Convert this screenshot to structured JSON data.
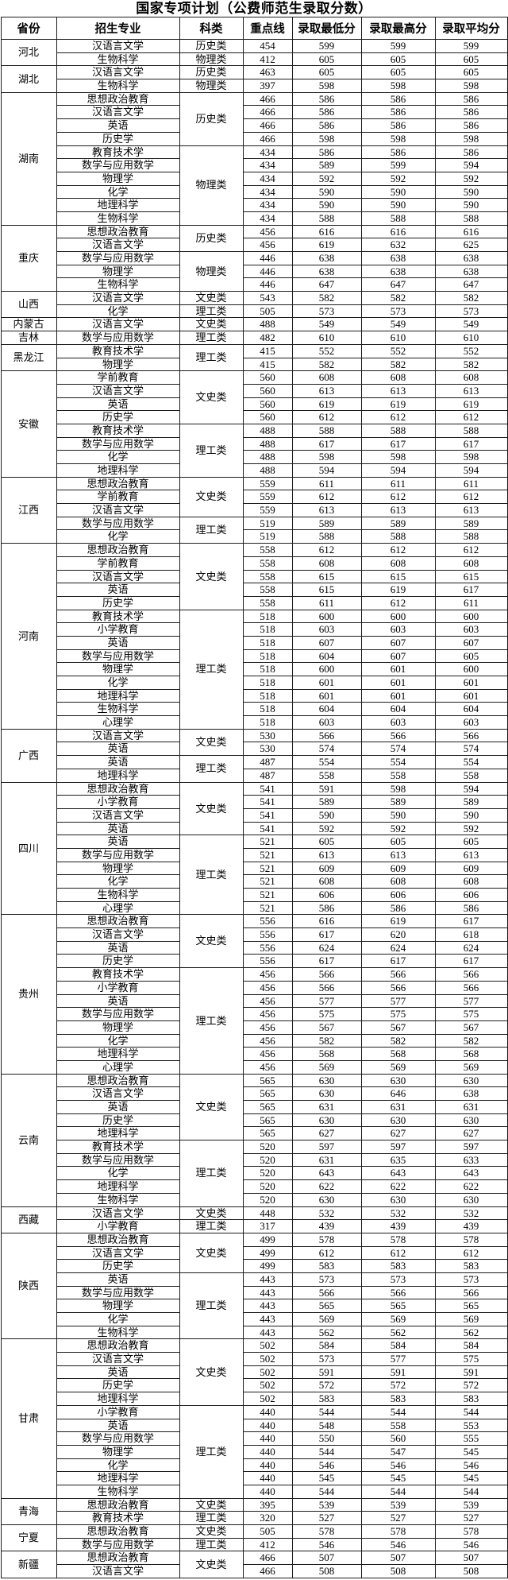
{
  "title": "国家专项计划（公费师范生录取分数）",
  "columns": [
    "省份",
    "招生专业",
    "科类",
    "重点线",
    "录取最低分",
    "录取最高分",
    "录取平均分"
  ],
  "colors": {
    "border": "#1c1c1c",
    "text": "#000000",
    "background": "#ffffff"
  },
  "provinces": [
    {
      "name": "河北",
      "groups": [
        {
          "category": "历史类",
          "rows": [
            [
              "汉语言文学",
              454,
              599,
              599,
              599
            ]
          ]
        },
        {
          "category": "物理类",
          "rows": [
            [
              "生物科学",
              412,
              605,
              605,
              605
            ]
          ]
        }
      ]
    },
    {
      "name": "湖北",
      "groups": [
        {
          "category": "历史类",
          "rows": [
            [
              "汉语言文学",
              463,
              605,
              605,
              605
            ]
          ]
        },
        {
          "category": "物理类",
          "rows": [
            [
              "生物科学",
              397,
              598,
              598,
              598
            ]
          ]
        }
      ]
    },
    {
      "name": "湖南",
      "groups": [
        {
          "category": "历史类",
          "rows": [
            [
              "思想政治教育",
              466,
              586,
              586,
              586
            ],
            [
              "汉语言文学",
              466,
              586,
              586,
              586
            ],
            [
              "英语",
              466,
              586,
              586,
              586
            ],
            [
              "历史学",
              466,
              598,
              598,
              598
            ]
          ]
        },
        {
          "category": "物理类",
          "rows": [
            [
              "教育技术学",
              434,
              586,
              586,
              586
            ],
            [
              "数学与应用数学",
              434,
              589,
              599,
              594
            ],
            [
              "物理学",
              434,
              592,
              592,
              592
            ],
            [
              "化学",
              434,
              590,
              590,
              590
            ],
            [
              "地理科学",
              434,
              590,
              590,
              590
            ],
            [
              "生物科学",
              434,
              588,
              588,
              588
            ]
          ]
        }
      ]
    },
    {
      "name": "重庆",
      "groups": [
        {
          "category": "历史类",
          "rows": [
            [
              "思想政治教育",
              456,
              616,
              616,
              616
            ],
            [
              "汉语言文学",
              456,
              619,
              632,
              625
            ]
          ]
        },
        {
          "category": "物理类",
          "rows": [
            [
              "数学与应用数学",
              446,
              638,
              638,
              638
            ],
            [
              "物理学",
              446,
              638,
              638,
              638
            ],
            [
              "生物科学",
              446,
              647,
              647,
              647
            ]
          ]
        }
      ]
    },
    {
      "name": "山西",
      "groups": [
        {
          "category": "文史类",
          "rows": [
            [
              "汉语言文学",
              543,
              582,
              582,
              582
            ]
          ]
        },
        {
          "category": "理工类",
          "rows": [
            [
              "化学",
              505,
              573,
              573,
              573
            ]
          ]
        }
      ]
    },
    {
      "name": "内蒙古",
      "groups": [
        {
          "category": "文史类",
          "rows": [
            [
              "汉语言文学",
              488,
              549,
              549,
              549
            ]
          ]
        }
      ]
    },
    {
      "name": "吉林",
      "groups": [
        {
          "category": "理工类",
          "rows": [
            [
              "数学与应用数学",
              482,
              610,
              610,
              610
            ]
          ]
        }
      ]
    },
    {
      "name": "黑龙江",
      "groups": [
        {
          "category": "理工类",
          "rows": [
            [
              "教育技术学",
              415,
              552,
              552,
              552
            ],
            [
              "物理学",
              415,
              582,
              582,
              582
            ]
          ]
        }
      ]
    },
    {
      "name": "安徽",
      "groups": [
        {
          "category": "文史类",
          "rows": [
            [
              "学前教育",
              560,
              608,
              608,
              608
            ],
            [
              "汉语言文学",
              560,
              613,
              613,
              613
            ],
            [
              "英语",
              560,
              619,
              619,
              619
            ],
            [
              "历史学",
              560,
              612,
              612,
              612
            ]
          ]
        },
        {
          "category": "理工类",
          "rows": [
            [
              "教育技术学",
              488,
              588,
              588,
              588
            ],
            [
              "数学与应用数学",
              488,
              617,
              617,
              617
            ],
            [
              "化学",
              488,
              598,
              598,
              598
            ],
            [
              "地理科学",
              488,
              594,
              594,
              594
            ]
          ]
        }
      ]
    },
    {
      "name": "江西",
      "groups": [
        {
          "category": "文史类",
          "rows": [
            [
              "思想政治教育",
              559,
              611,
              611,
              611
            ],
            [
              "学前教育",
              559,
              612,
              612,
              612
            ],
            [
              "汉语言文学",
              559,
              613,
              613,
              613
            ]
          ]
        },
        {
          "category": "理工类",
          "rows": [
            [
              "数学与应用数学",
              519,
              589,
              589,
              589
            ],
            [
              "化学",
              519,
              588,
              588,
              588
            ]
          ]
        }
      ]
    },
    {
      "name": "河南",
      "groups": [
        {
          "category": "文史类",
          "rows": [
            [
              "思想政治教育",
              558,
              612,
              612,
              612
            ],
            [
              "学前教育",
              558,
              608,
              608,
              608
            ],
            [
              "汉语言文学",
              558,
              615,
              615,
              615
            ],
            [
              "英语",
              558,
              615,
              619,
              617
            ],
            [
              "历史学",
              558,
              611,
              612,
              611
            ]
          ]
        },
        {
          "category": "理工类",
          "rows": [
            [
              "教育技术学",
              518,
              600,
              600,
              600
            ],
            [
              "小学教育",
              518,
              603,
              603,
              603
            ],
            [
              "英语",
              518,
              607,
              607,
              607
            ],
            [
              "数学与应用数学",
              518,
              604,
              607,
              605
            ],
            [
              "物理学",
              518,
              600,
              601,
              600
            ],
            [
              "化学",
              518,
              601,
              601,
              601
            ],
            [
              "地理科学",
              518,
              601,
              601,
              601
            ],
            [
              "生物科学",
              518,
              604,
              604,
              604
            ],
            [
              "心理学",
              518,
              603,
              603,
              603
            ]
          ]
        }
      ]
    },
    {
      "name": "广西",
      "groups": [
        {
          "category": "文史类",
          "rows": [
            [
              "汉语言文学",
              530,
              566,
              566,
              566
            ],
            [
              "英语",
              530,
              574,
              574,
              574
            ]
          ]
        },
        {
          "category": "理工类",
          "rows": [
            [
              "英语",
              487,
              554,
              554,
              554
            ],
            [
              "地理科学",
              487,
              558,
              558,
              558
            ]
          ]
        }
      ]
    },
    {
      "name": "四川",
      "groups": [
        {
          "category": "文史类",
          "rows": [
            [
              "思想政治教育",
              541,
              591,
              598,
              594
            ],
            [
              "小学教育",
              541,
              589,
              589,
              589
            ],
            [
              "汉语言文学",
              541,
              590,
              590,
              590
            ],
            [
              "英语",
              541,
              592,
              592,
              592
            ]
          ]
        },
        {
          "category": "理工类",
          "rows": [
            [
              "英语",
              521,
              605,
              605,
              605
            ],
            [
              "数学与应用数学",
              521,
              613,
              613,
              613
            ],
            [
              "物理学",
              521,
              609,
              609,
              609
            ],
            [
              "化学",
              521,
              608,
              608,
              608
            ],
            [
              "生物科学",
              521,
              606,
              606,
              606
            ],
            [
              "心理学",
              521,
              586,
              586,
              586
            ]
          ]
        }
      ]
    },
    {
      "name": "贵州",
      "groups": [
        {
          "category": "文史类",
          "rows": [
            [
              "思想政治教育",
              556,
              616,
              619,
              617
            ],
            [
              "汉语言文学",
              556,
              617,
              620,
              618
            ],
            [
              "英语",
              556,
              624,
              624,
              624
            ],
            [
              "历史学",
              556,
              617,
              617,
              617
            ]
          ]
        },
        {
          "category": "理工类",
          "rows": [
            [
              "教育技术学",
              456,
              566,
              566,
              566
            ],
            [
              "小学教育",
              456,
              566,
              566,
              566
            ],
            [
              "英语",
              456,
              577,
              577,
              577
            ],
            [
              "数学与应用数学",
              456,
              575,
              575,
              575
            ],
            [
              "物理学",
              456,
              567,
              567,
              567
            ],
            [
              "化学",
              456,
              582,
              582,
              582
            ],
            [
              "地理科学",
              456,
              568,
              568,
              568
            ],
            [
              "心理学",
              456,
              569,
              569,
              569
            ]
          ]
        }
      ]
    },
    {
      "name": "云南",
      "groups": [
        {
          "category": "文史类",
          "rows": [
            [
              "思想政治教育",
              565,
              630,
              630,
              630
            ],
            [
              "汉语言文学",
              565,
              630,
              646,
              638
            ],
            [
              "英语",
              565,
              631,
              631,
              631
            ],
            [
              "历史学",
              565,
              630,
              630,
              630
            ],
            [
              "地理科学",
              565,
              627,
              627,
              627
            ]
          ]
        },
        {
          "category": "理工类",
          "rows": [
            [
              "教育技术学",
              520,
              597,
              597,
              597
            ],
            [
              "数学与应用数学",
              520,
              631,
              635,
              633
            ],
            [
              "化学",
              520,
              643,
              643,
              643
            ],
            [
              "地理科学",
              520,
              622,
              622,
              622
            ],
            [
              "生物科学",
              520,
              630,
              630,
              630
            ]
          ]
        }
      ]
    },
    {
      "name": "西藏",
      "groups": [
        {
          "category": "文史类",
          "rows": [
            [
              "汉语言文学",
              448,
              532,
              532,
              532
            ]
          ]
        },
        {
          "category": "理工类",
          "rows": [
            [
              "小学教育",
              317,
              439,
              439,
              439
            ]
          ]
        }
      ]
    },
    {
      "name": "陕西",
      "groups": [
        {
          "category": "文史类",
          "rows": [
            [
              "思想政治教育",
              499,
              578,
              578,
              578
            ],
            [
              "汉语言文学",
              499,
              612,
              612,
              612
            ],
            [
              "历史学",
              499,
              583,
              583,
              583
            ]
          ]
        },
        {
          "category": "理工类",
          "rows": [
            [
              "英语",
              443,
              573,
              573,
              573
            ],
            [
              "数学与应用数学",
              443,
              566,
              566,
              566
            ],
            [
              "物理学",
              443,
              565,
              565,
              565
            ],
            [
              "化学",
              443,
              569,
              569,
              569
            ],
            [
              "生物科学",
              443,
              562,
              562,
              562
            ]
          ]
        }
      ]
    },
    {
      "name": "甘肃",
      "groups": [
        {
          "category": "文史类",
          "rows": [
            [
              "思想政治教育",
              502,
              584,
              584,
              584
            ],
            [
              "汉语言文学",
              502,
              573,
              577,
              575
            ],
            [
              "英语",
              502,
              591,
              591,
              591
            ],
            [
              "历史学",
              502,
              572,
              572,
              572
            ],
            [
              "地理科学",
              502,
              583,
              583,
              583
            ]
          ]
        },
        {
          "category": "理工类",
          "rows": [
            [
              "小学教育",
              440,
              544,
              544,
              544
            ],
            [
              "英语",
              440,
              548,
              558,
              553
            ],
            [
              "数学与应用数学",
              440,
              550,
              560,
              555
            ],
            [
              "物理学",
              440,
              544,
              547,
              545
            ],
            [
              "化学",
              440,
              546,
              546,
              546
            ],
            [
              "地理科学",
              440,
              545,
              545,
              545
            ],
            [
              "生物科学",
              440,
              544,
              544,
              544
            ]
          ]
        }
      ]
    },
    {
      "name": "青海",
      "groups": [
        {
          "category": "文史类",
          "rows": [
            [
              "思想政治教育",
              395,
              539,
              539,
              539
            ]
          ]
        },
        {
          "category": "理工类",
          "rows": [
            [
              "教育技术学",
              320,
              527,
              527,
              527
            ]
          ]
        }
      ]
    },
    {
      "name": "宁夏",
      "groups": [
        {
          "category": "文史类",
          "rows": [
            [
              "思想政治教育",
              505,
              578,
              578,
              578
            ]
          ]
        },
        {
          "category": "理工类",
          "rows": [
            [
              "数学与应用数学",
              412,
              546,
              546,
              546
            ]
          ]
        }
      ]
    },
    {
      "name": "新疆",
      "groups": [
        {
          "category": "文史类",
          "rows": [
            [
              "思想政治教育",
              466,
              507,
              507,
              507
            ],
            [
              "汉语言文学",
              466,
              508,
              508,
              508
            ]
          ]
        }
      ]
    }
  ]
}
